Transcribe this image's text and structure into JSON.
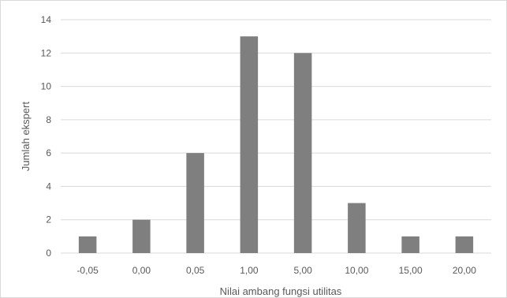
{
  "chart_data": {
    "type": "bar",
    "categories": [
      "-0,05",
      "0,00",
      "0,05",
      "1,00",
      "5,00",
      "10,00",
      "15,00",
      "20,00"
    ],
    "values": [
      1,
      2,
      6,
      13,
      12,
      3,
      1,
      1
    ],
    "xlabel": "Nilai ambang fungsi utilitas",
    "ylabel": "Jumlah ekspert",
    "ylim": [
      0,
      14
    ],
    "yticks": [
      "0",
      "2",
      "4",
      "6",
      "8",
      "10",
      "12",
      "14"
    ],
    "grid": true,
    "legend": "none",
    "bar_color": "#7f7f7f",
    "grid_color": "#d9d9d9"
  }
}
